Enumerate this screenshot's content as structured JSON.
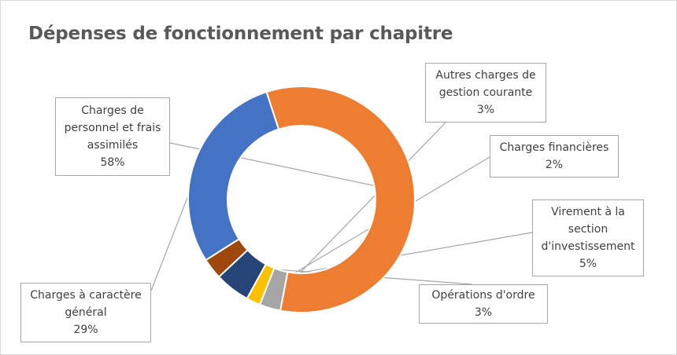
{
  "chart_data": {
    "type": "pie",
    "variant": "doughnut",
    "title": "Dépenses de fonctionnement par chapitre",
    "categories": [
      "Charges de personnel et frais assimilés",
      "Autres charges de gestion courante",
      "Charges financières",
      "Virement à la section d'investissement",
      "Opérations d'ordre",
      "Charges à caractère général"
    ],
    "values": [
      58,
      3,
      2,
      5,
      3,
      29
    ],
    "percent_labels": [
      "58%",
      "3%",
      "2%",
      "5%",
      "3%",
      "29%"
    ],
    "colors": [
      "#ed7d31",
      "#a5a5a5",
      "#ffc000",
      "#264478",
      "#9e480e",
      "#4472c4"
    ],
    "legend": "none"
  },
  "labels": {
    "personnel": [
      "Charges de",
      "personnel et frais",
      "assimilés"
    ],
    "autres": [
      "Autres charges de",
      "gestion courante"
    ],
    "financieres": [
      "Charges financières"
    ],
    "virement": [
      "Virement à la",
      "section",
      "d'investissement"
    ],
    "ordre": [
      "Opérations d'ordre"
    ],
    "general": [
      "Charges à caractère",
      "général"
    ]
  }
}
